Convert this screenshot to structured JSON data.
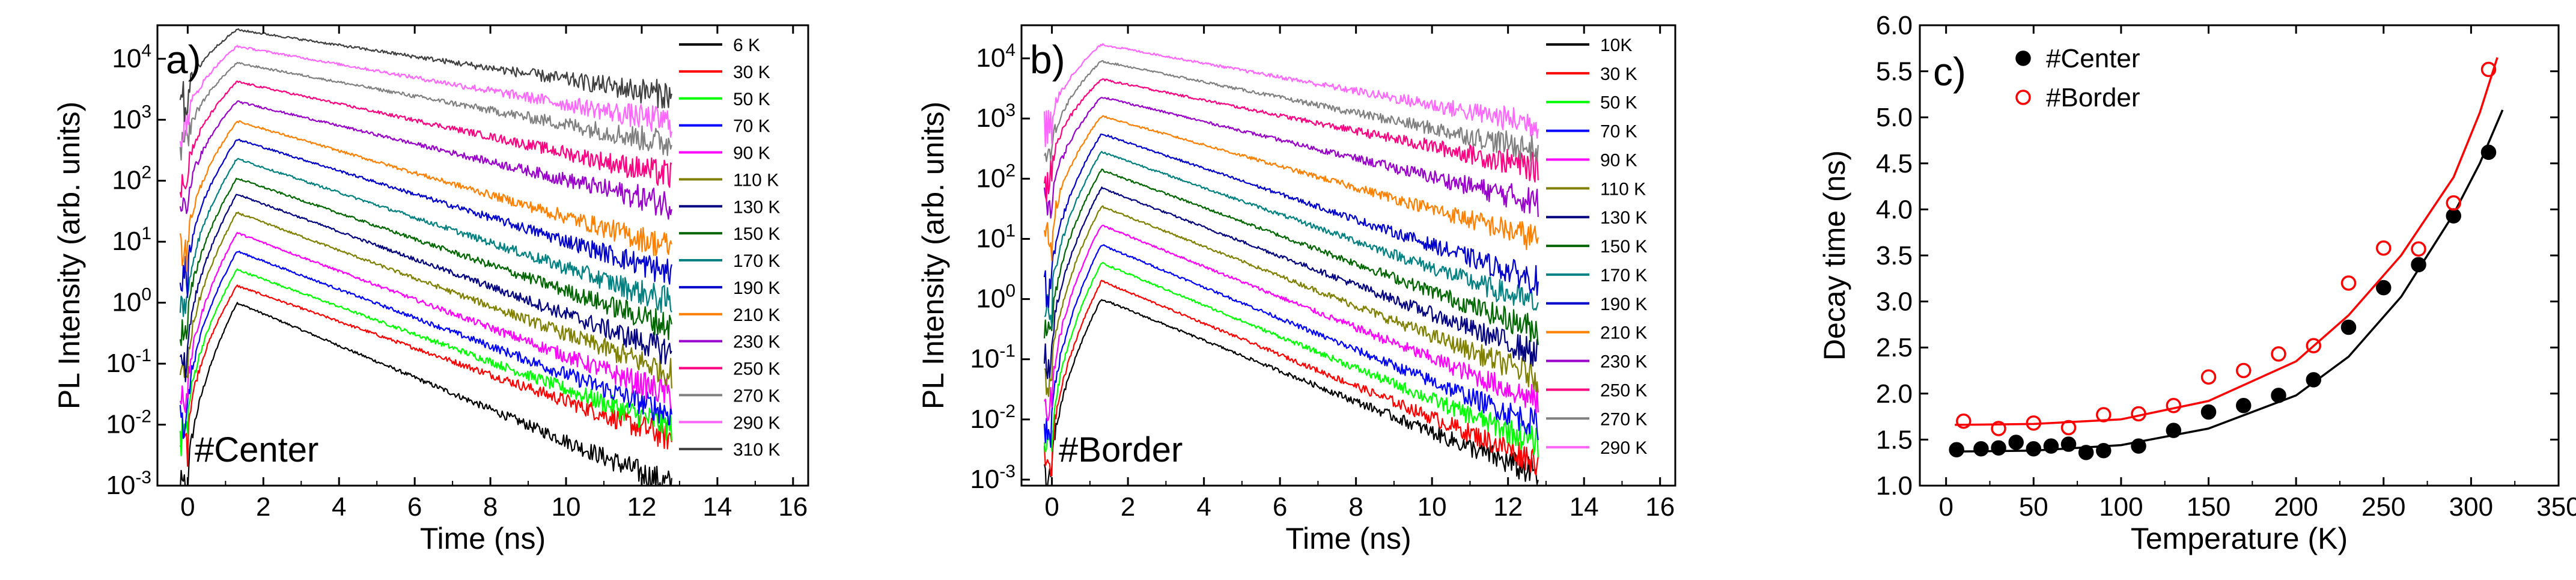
{
  "chart_data": [
    {
      "panel_label": "a)",
      "type": "line",
      "yscale": "log",
      "xlabel": "Time (ns)",
      "ylabel": "PL Intensity (arb. units)",
      "xlim": [
        -0.8,
        16.4
      ],
      "xticks": [
        0,
        2,
        4,
        6,
        8,
        10,
        12,
        14,
        16
      ],
      "ylim_log10": [
        -3,
        4.55
      ],
      "yticks": [
        {
          "base": "10",
          "exp": "-3",
          "value": 0.001
        },
        {
          "base": "10",
          "exp": "-2",
          "value": 0.01
        },
        {
          "base": "10",
          "exp": "-1",
          "value": 0.1
        },
        {
          "base": "10",
          "exp": "0",
          "value": 1
        },
        {
          "base": "10",
          "exp": "1",
          "value": 10
        },
        {
          "base": "10",
          "exp": "2",
          "value": 100
        },
        {
          "base": "10",
          "exp": "3",
          "value": 1000
        },
        {
          "base": "10",
          "exp": "4",
          "value": 10000
        }
      ],
      "annotation": "#Center",
      "legend_position": "right",
      "data_end_time": 12.8,
      "rise_start_time": 0,
      "peak_time": 1.3,
      "series": [
        {
          "name": "6 K",
          "color": "#000000",
          "peak": 1.0,
          "end": 0.001
        },
        {
          "name": "30 K",
          "color": "#ff0000",
          "peak": 1.9,
          "end": 0.006
        },
        {
          "name": "50 K",
          "color": "#00ff00",
          "peak": 3.5,
          "end": 0.009
        },
        {
          "name": "70 K",
          "color": "#0000ff",
          "peak": 7,
          "end": 0.015
        },
        {
          "name": "90 K",
          "color": "#ff00ff",
          "peak": 14,
          "end": 0.03
        },
        {
          "name": "110 K",
          "color": "#808000",
          "peak": 30,
          "end": 0.07
        },
        {
          "name": "130 K",
          "color": "#000080",
          "peak": 60,
          "end": 0.15
        },
        {
          "name": "150 K",
          "color": "#006600",
          "peak": 110,
          "end": 0.4
        },
        {
          "name": "170 K",
          "color": "#008080",
          "peak": 230,
          "end": 1.0
        },
        {
          "name": "190 K",
          "color": "#0000cc",
          "peak": 480,
          "end": 3
        },
        {
          "name": "210 K",
          "color": "#ff8000",
          "peak": 950,
          "end": 8
        },
        {
          "name": "230 K",
          "color": "#9900cc",
          "peak": 2000,
          "end": 40
        },
        {
          "name": "250 K",
          "color": "#ff0080",
          "peak": 4200,
          "end": 120
        },
        {
          "name": "270 K",
          "color": "#808080",
          "peak": 8500,
          "end": 400
        },
        {
          "name": "290 K",
          "color": "#ff66ff",
          "peak": 16000,
          "end": 900
        },
        {
          "name": "310 K",
          "color": "#404040",
          "peak": 30000,
          "end": 2500
        }
      ]
    },
    {
      "panel_label": "b)",
      "type": "line",
      "yscale": "log",
      "xlabel": "Time (ns)",
      "ylabel": "PL Intensity (arb. units)",
      "xlim": [
        -0.8,
        16.4
      ],
      "xticks": [
        0,
        2,
        4,
        6,
        8,
        10,
        12,
        14,
        16
      ],
      "ylim_log10": [
        -3.1,
        4.55
      ],
      "yticks": [
        {
          "base": "10",
          "exp": "-3",
          "value": 0.001
        },
        {
          "base": "10",
          "exp": "-2",
          "value": 0.01
        },
        {
          "base": "10",
          "exp": "-1",
          "value": 0.1
        },
        {
          "base": "10",
          "exp": "0",
          "value": 1
        },
        {
          "base": "10",
          "exp": "1",
          "value": 10
        },
        {
          "base": "10",
          "exp": "2",
          "value": 100
        },
        {
          "base": "10",
          "exp": "3",
          "value": 1000
        },
        {
          "base": "10",
          "exp": "4",
          "value": 10000
        }
      ],
      "annotation": "#Border",
      "legend_position": "right",
      "data_end_time": 12.8,
      "rise_start_time": 0,
      "peak_time": 1.3,
      "series": [
        {
          "name": "10K",
          "color": "#000000",
          "peak": 1.0,
          "end": 0.0012
        },
        {
          "name": "30 K",
          "color": "#ff0000",
          "peak": 2.0,
          "end": 0.002
        },
        {
          "name": "50 K",
          "color": "#00ff00",
          "peak": 4.0,
          "end": 0.004
        },
        {
          "name": "70 K",
          "color": "#0000ff",
          "peak": 8,
          "end": 0.008
        },
        {
          "name": "90 K",
          "color": "#ff00ff",
          "peak": 17,
          "end": 0.02
        },
        {
          "name": "110 K",
          "color": "#808000",
          "peak": 35,
          "end": 0.05
        },
        {
          "name": "130 K",
          "color": "#000080",
          "peak": 70,
          "end": 0.12
        },
        {
          "name": "150 K",
          "color": "#006600",
          "peak": 140,
          "end": 0.3
        },
        {
          "name": "170 K",
          "color": "#008080",
          "peak": 280,
          "end": 0.8
        },
        {
          "name": "190 K",
          "color": "#0000cc",
          "peak": 560,
          "end": 2
        },
        {
          "name": "210 K",
          "color": "#ff8000",
          "peak": 1100,
          "end": 10
        },
        {
          "name": "230 K",
          "color": "#9900cc",
          "peak": 2300,
          "end": 40
        },
        {
          "name": "250 K",
          "color": "#ff0080",
          "peak": 4500,
          "end": 150
        },
        {
          "name": "270 K",
          "color": "#808080",
          "peak": 9000,
          "end": 300
        },
        {
          "name": "290 K",
          "color": "#ff66ff",
          "peak": 17000,
          "end": 800
        }
      ]
    },
    {
      "panel_label": "c)",
      "type": "scatter",
      "xlabel": "Temperature (K)",
      "ylabel": "Decay time (ns)",
      "xlim": [
        -15,
        350
      ],
      "ylim": [
        1.0,
        6.0
      ],
      "xticks": [
        "0",
        "50",
        "100",
        "150",
        "200",
        "250",
        "300",
        "350"
      ],
      "yticks": [
        "1.0",
        "1.5",
        "2.0",
        "2.5",
        "3.0",
        "3.5",
        "4.0",
        "4.5",
        "5.0",
        "5.5",
        "6.0"
      ],
      "legend_position": "top-left",
      "series": [
        {
          "name": "#Center",
          "color": "#000000",
          "marker": "filled-circle",
          "x": [
            6,
            20,
            30,
            40,
            50,
            60,
            70,
            80,
            90,
            110,
            130,
            150,
            170,
            190,
            210,
            230,
            250,
            270,
            290,
            310
          ],
          "y": [
            1.39,
            1.4,
            1.41,
            1.47,
            1.4,
            1.43,
            1.45,
            1.36,
            1.38,
            1.43,
            1.6,
            1.8,
            1.87,
            1.98,
            2.15,
            2.72,
            3.15,
            3.4,
            3.93,
            4.62
          ],
          "fit_x": [
            5,
            50,
            100,
            150,
            200,
            230,
            260,
            290,
            305,
            318
          ],
          "fit_y": [
            1.37,
            1.38,
            1.44,
            1.62,
            1.98,
            2.4,
            3.05,
            3.95,
            4.5,
            5.08
          ]
        },
        {
          "name": "#Border",
          "color": "#ff0000",
          "marker": "open-circle",
          "x": [
            10,
            30,
            50,
            70,
            90,
            110,
            130,
            150,
            170,
            190,
            210,
            230,
            250,
            270,
            290,
            310
          ],
          "y": [
            1.7,
            1.62,
            1.68,
            1.63,
            1.77,
            1.78,
            1.87,
            2.18,
            2.25,
            2.43,
            2.52,
            3.2,
            3.58,
            3.57,
            4.07,
            5.52
          ],
          "fit_x": [
            5,
            50,
            100,
            150,
            200,
            230,
            260,
            290,
            305,
            315
          ],
          "fit_y": [
            1.66,
            1.67,
            1.72,
            1.92,
            2.35,
            2.85,
            3.5,
            4.35,
            5.05,
            5.65
          ]
        }
      ]
    }
  ]
}
